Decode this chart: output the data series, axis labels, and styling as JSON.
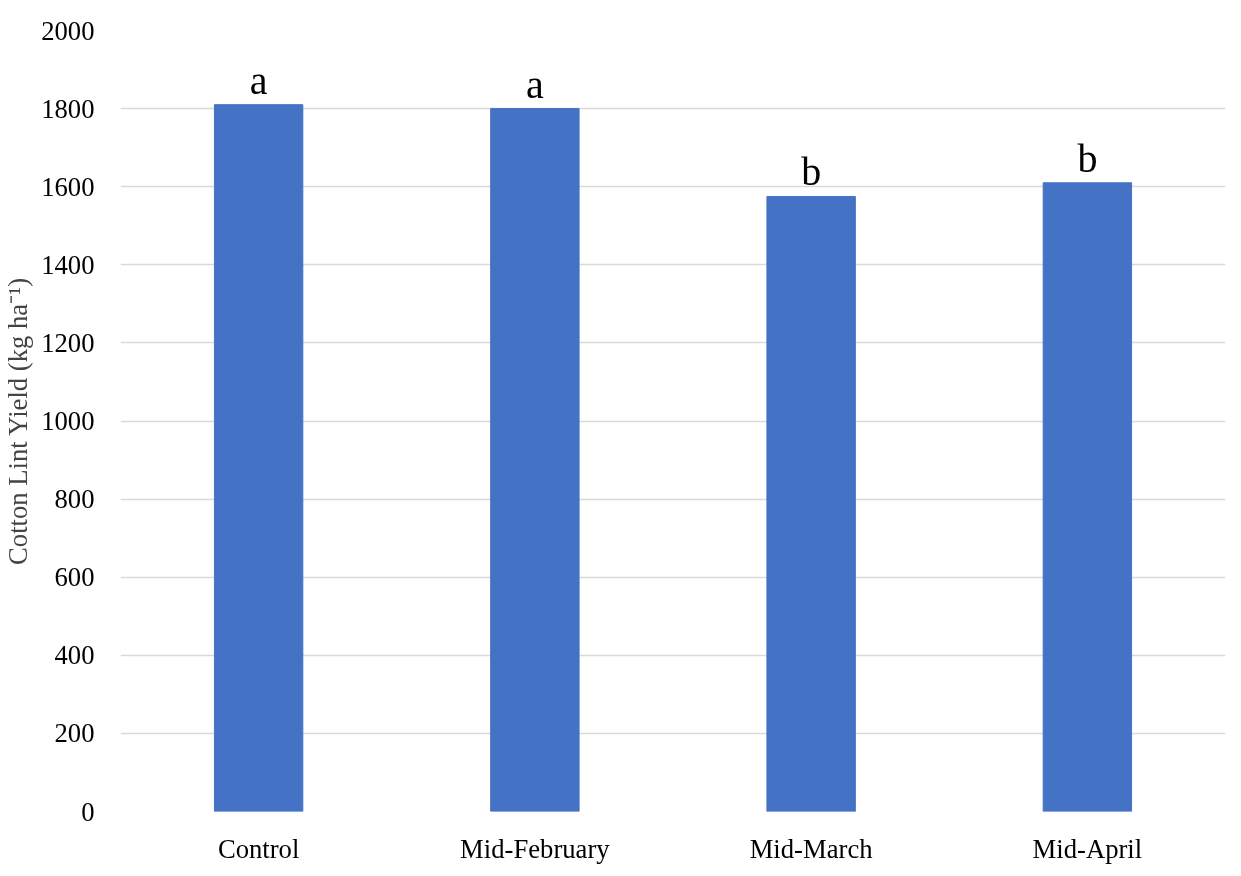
{
  "chart_data": {
    "type": "bar",
    "ylabel": "Cotton Lint Yield (kg ha⁻¹)",
    "categories": [
      "Control",
      "Mid-February",
      "Mid-March",
      "Mid-April"
    ],
    "values": [
      1810,
      1800,
      1575,
      1610
    ],
    "value_labels": [
      "a",
      "a",
      "b",
      "b"
    ],
    "color": "#4472c4",
    "ylim": [
      0,
      2000
    ],
    "yticks": [
      0,
      200,
      400,
      600,
      800,
      1000,
      1200,
      1400,
      1600,
      1800,
      2000
    ],
    "grid": "y"
  }
}
